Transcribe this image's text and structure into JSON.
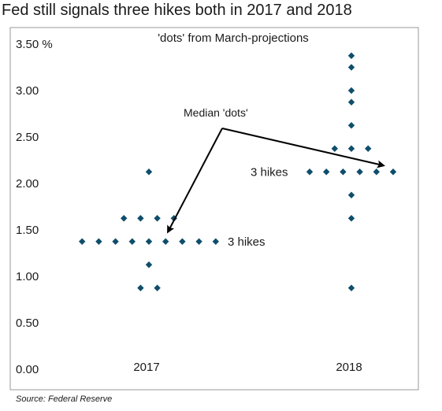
{
  "title": "Fed still signals three hikes both in 2017 and 2018",
  "source": "Source: Federal Reserve",
  "colors": {
    "dot": "#0f4e6b",
    "plot_border": "#9a9a9a",
    "text": "#1a1a1a"
  },
  "chart_data": {
    "type": "scatter",
    "title": "'dots' from March-projections",
    "ylim": [
      0,
      3.75
    ],
    "yticks": [
      {
        "value": 0,
        "label": "0.00"
      },
      {
        "value": 0.5,
        "label": "0.50"
      },
      {
        "value": 1,
        "label": "1.00"
      },
      {
        "value": 1.5,
        "label": "1.50"
      },
      {
        "value": 2,
        "label": "2.00"
      },
      {
        "value": 2.5,
        "label": "2.50"
      },
      {
        "value": 3,
        "label": "3.00"
      },
      {
        "value": 3.5,
        "label": "3.50 %"
      }
    ],
    "categories": [
      "2017",
      "2018"
    ],
    "grid": false,
    "groups": [
      {
        "category": "2017",
        "rows": [
          {
            "rate": 2.125,
            "count": 1
          },
          {
            "rate": 1.625,
            "count": 4
          },
          {
            "rate": 1.375,
            "count": 9
          },
          {
            "rate": 1.125,
            "count": 1
          },
          {
            "rate": 0.875,
            "count": 2
          }
        ],
        "annotation": "3 hikes",
        "median": 1.375
      },
      {
        "category": "2018",
        "rows": [
          {
            "rate": 3.375,
            "count": 1
          },
          {
            "rate": 3.25,
            "count": 1
          },
          {
            "rate": 3.0,
            "count": 1
          },
          {
            "rate": 2.875,
            "count": 1
          },
          {
            "rate": 2.625,
            "count": 1
          },
          {
            "rate": 2.375,
            "count": 3
          },
          {
            "rate": 2.125,
            "count": 6
          },
          {
            "rate": 1.875,
            "count": 1
          },
          {
            "rate": 1.625,
            "count": 1
          },
          {
            "rate": 0.875,
            "count": 1
          }
        ],
        "annotation": "3 hikes",
        "median": 2.125
      }
    ],
    "median_label": "Median 'dots'"
  }
}
